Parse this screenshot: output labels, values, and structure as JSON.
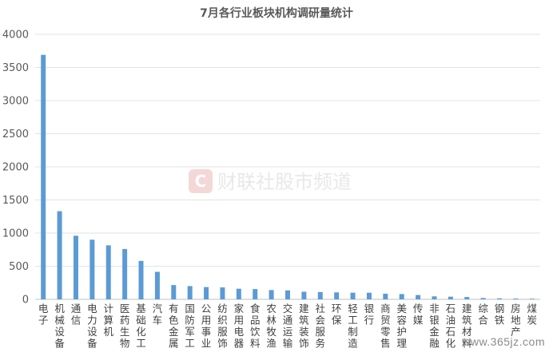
{
  "chart_data": {
    "type": "bar",
    "title": "7月各行业板块机构调研量统计",
    "ylim": [
      0,
      4000
    ],
    "yticks": [
      0,
      500,
      1000,
      1500,
      2000,
      2500,
      3000,
      3500,
      4000
    ],
    "grid": "horizontal",
    "color": "#5b9bd5",
    "categories": [
      "电子",
      "机械设备",
      "通信",
      "电力设备",
      "计算机",
      "医药生物",
      "基础化工",
      "汽车",
      "有色金属",
      "国防军工",
      "公用事业",
      "纺织服饰",
      "家用电器",
      "食品饮料",
      "农林牧渔",
      "交通运输",
      "建筑装饰",
      "社会服务",
      "环保",
      "轻工制造",
      "银行",
      "商贸零售",
      "美容护理",
      "传媒",
      "非银金融",
      "石油石化",
      "建筑材料",
      "综合",
      "钢铁",
      "房地产",
      "煤炭"
    ],
    "values": [
      3690,
      1330,
      960,
      900,
      815,
      760,
      580,
      415,
      215,
      200,
      185,
      180,
      160,
      155,
      140,
      135,
      115,
      110,
      105,
      100,
      100,
      85,
      80,
      65,
      45,
      40,
      35,
      20,
      15,
      12,
      10
    ]
  },
  "watermark": {
    "icon": "c-logo-icon",
    "text": "财联社股市频道"
  },
  "site_mark": "www.365jz.com"
}
